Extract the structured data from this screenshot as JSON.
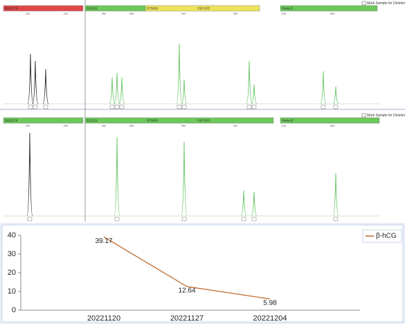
{
  "panels": [
    {
      "markers": [
        "D8S1179",
        "D21S11",
        "D7S820",
        "CSF1PO",
        "Penta D"
      ],
      "checkbox": "Mark Sample for Deletion",
      "ticks": [
        "220",
        "240",
        "260",
        "280",
        "300",
        "320",
        "340",
        "360"
      ]
    },
    {
      "markers": [
        "D8S1179",
        "D21S11",
        "D7S820",
        "CSF1PO",
        "Penta D"
      ],
      "checkbox": "Mark Sample for Deletion",
      "ticks": [
        "220",
        "240",
        "260",
        "280",
        "300",
        "320",
        "340",
        "360"
      ]
    }
  ],
  "chart_data": {
    "type": "line",
    "categories": [
      "20221120",
      "20221127",
      "20221204"
    ],
    "series": [
      {
        "name": "β-hCG",
        "color": "#c0682a",
        "values": [
          39.17,
          12.64,
          5.98
        ]
      }
    ],
    "ylim": [
      0,
      40
    ],
    "yticks": [
      0,
      10,
      20,
      30,
      40
    ],
    "legend": "top-right"
  }
}
